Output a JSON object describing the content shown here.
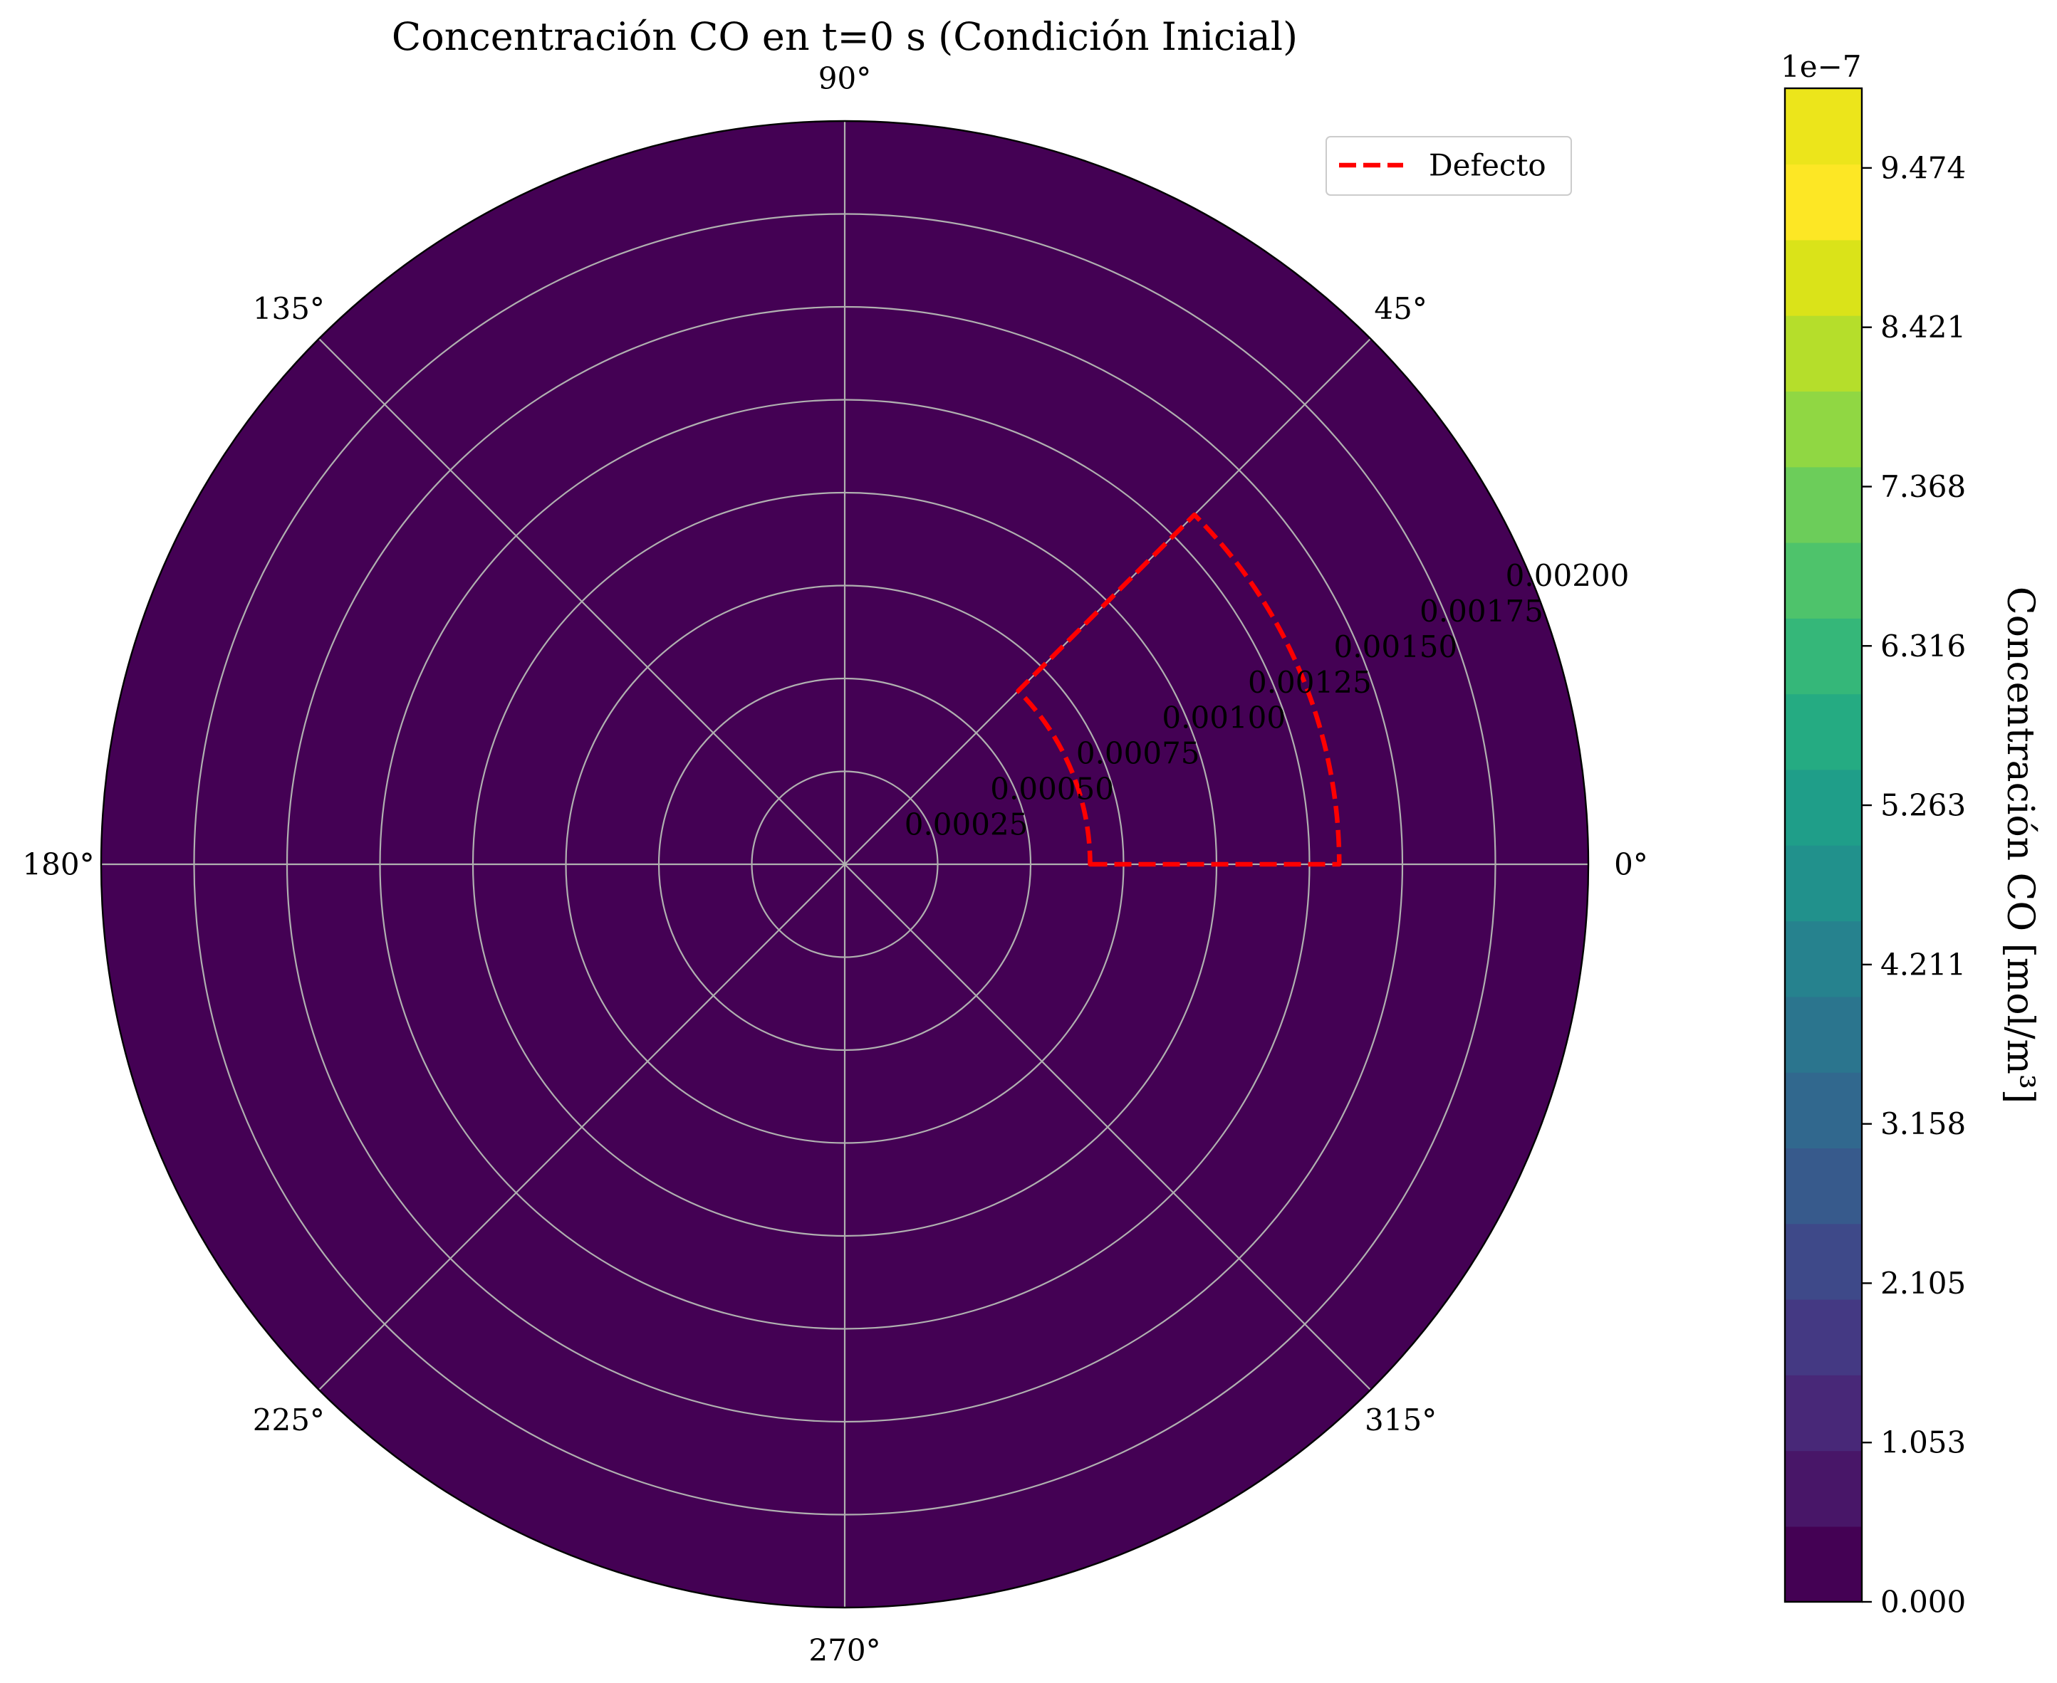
{
  "chart_data": {
    "type": "heatmap",
    "projection": "polar",
    "title": "Concentración CO en t=0 s (Condición Inicial)",
    "field_value_mol_m3": 0.0,
    "grid": true,
    "angular_ticks_deg": [
      0,
      45,
      90,
      135,
      180,
      225,
      270,
      315
    ],
    "angular_tick_labels": [
      "0°",
      "45°",
      "90°",
      "135°",
      "180°",
      "225°",
      "270°",
      "315°"
    ],
    "radial_range": [
      0,
      0.002
    ],
    "radial_ticks": [
      0.00025,
      0.0005,
      0.00075,
      0.001,
      0.00125,
      0.0015,
      0.00175,
      0.002
    ],
    "radial_tick_labels": [
      "0.00025",
      "0.00050",
      "0.00075",
      "0.00100",
      "0.00125",
      "0.00150",
      "0.00175",
      "0.00200"
    ],
    "radial_label_angle_deg": 22.5,
    "legend": {
      "placement": "top-right",
      "entries": [
        "Defecto"
      ]
    },
    "defect_outline": {
      "name": "Defecto",
      "color": "#ff0000",
      "style": "dashed",
      "r_min": 0.00066,
      "r_max": 0.00133,
      "theta_min_deg": 0,
      "theta_max_deg": 45
    },
    "colorbar": {
      "label": "Concentración CO [mol/m³]",
      "offset_text": "1e−7",
      "range": [
        0,
        1e-06
      ],
      "levels": 20,
      "tick_values": [
        0,
        0.10526,
        0.21053,
        0.31579,
        0.42105,
        0.52632,
        0.63158,
        0.73684,
        0.84211,
        0.94737
      ],
      "tick_labels": [
        "0.000",
        "1.053",
        "2.105",
        "3.158",
        "4.211",
        "5.263",
        "6.316",
        "7.368",
        "8.421",
        "9.474"
      ],
      "colors": [
        "#440154",
        "#481668",
        "#482878",
        "#443983",
        "#3e4989",
        "#375a8c",
        "#31688e",
        "#2b758e",
        "#26828e",
        "#21918c",
        "#1f9e89",
        "#25ab82",
        "#35b779",
        "#4ec36b",
        "#6ccd5a",
        "#90d743",
        "#b5de2b",
        "#dae319",
        "#fde725",
        "#ece51b"
      ]
    }
  }
}
